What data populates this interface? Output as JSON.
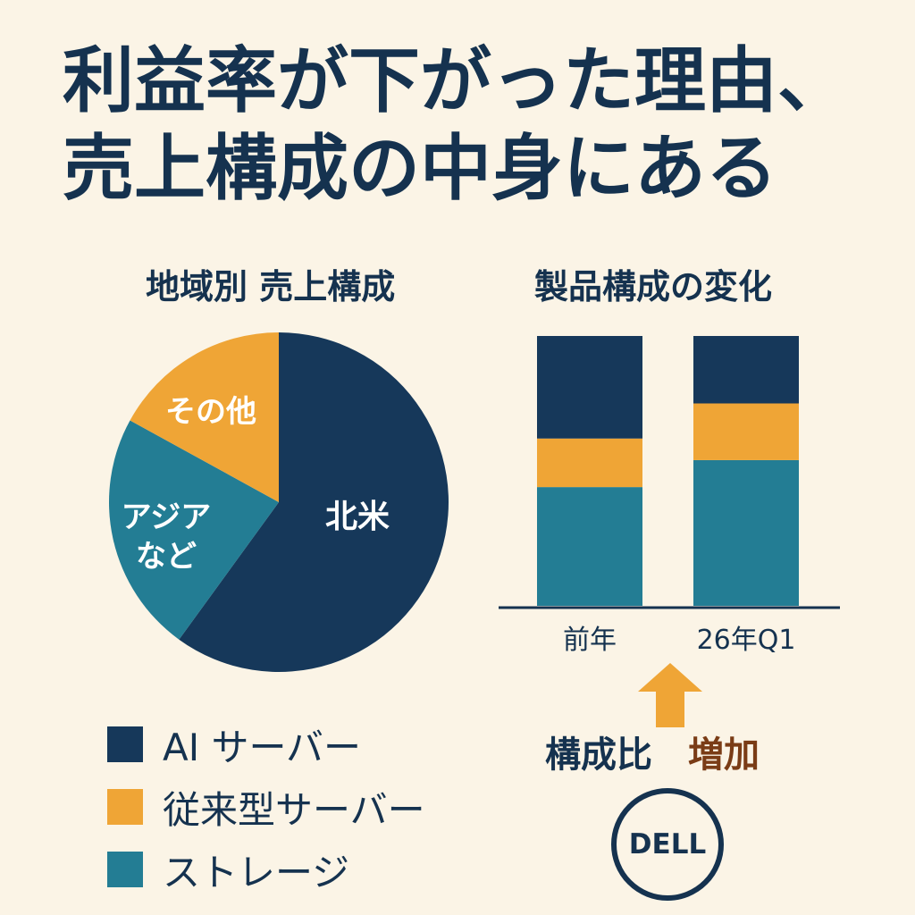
{
  "title": {
    "line1": "利益率が下がった理由、",
    "line2": "売上構成の中身にある"
  },
  "colors": {
    "navy": "#16385a",
    "orange": "#efa536",
    "teal": "#237d94",
    "background": "#fbf4e6",
    "text": "#15324f",
    "accent_brown": "#7a3c16"
  },
  "chart_data": [
    {
      "type": "pie",
      "title": "地域別 売上構成",
      "slices": [
        {
          "label": "北米",
          "value": 60,
          "color": "#16385a"
        },
        {
          "label": "アジア\nなど",
          "value": 23,
          "color": "#237d94"
        },
        {
          "label": "その他",
          "value": 17,
          "color": "#efa536"
        }
      ]
    },
    {
      "type": "bar",
      "stacked": true,
      "title": "製品構成の変化",
      "categories": [
        "前年",
        "26年Q1"
      ],
      "series": [
        {
          "name": "ストレージ",
          "values": [
            44,
            54
          ],
          "color": "#237d94"
        },
        {
          "name": "従来型サーバー",
          "values": [
            18,
            21
          ],
          "color": "#efa536"
        },
        {
          "name": "AI サーバー",
          "values": [
            38,
            25
          ],
          "color": "#16385a"
        }
      ],
      "ylim": [
        0,
        100
      ]
    }
  ],
  "legend": [
    {
      "label": "AI サーバー",
      "color": "#16385a"
    },
    {
      "label": "従来型サーバー",
      "color": "#efa536"
    },
    {
      "label": "ストレージ",
      "color": "#237d94"
    }
  ],
  "annotation": {
    "ratio_label": "構成比",
    "increase_label": "増加",
    "arrow_icon": "up-arrow-icon",
    "arrow_color": "#efa536"
  },
  "logo": {
    "text": "DELL",
    "icon": "dell-logo-icon"
  }
}
